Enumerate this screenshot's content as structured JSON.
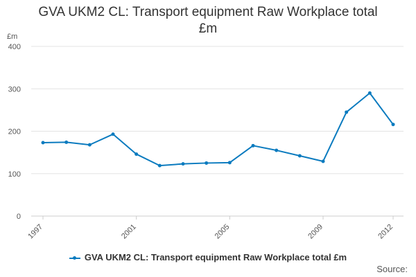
{
  "chart_data": {
    "type": "line",
    "title_lines": [
      "GVA UKM2 CL: Transport equipment Raw Workplace total",
      "£m"
    ],
    "ylabel": "£m",
    "xlabel": "",
    "ylim": [
      0,
      400
    ],
    "yticks": [
      0,
      100,
      200,
      300,
      400
    ],
    "xlim": [
      1997,
      2012
    ],
    "xticks": [
      1997,
      2001,
      2005,
      2009,
      2012
    ],
    "grid": true,
    "legend_position": "bottom",
    "series": [
      {
        "name": "GVA UKM2 CL: Transport equipment Raw Workplace total £m",
        "color": "#0b7bbf",
        "x": [
          1997,
          1998,
          1999,
          2000,
          2001,
          2002,
          2003,
          2004,
          2005,
          2006,
          2007,
          2008,
          2009,
          2010,
          2011,
          2012
        ],
        "values": [
          173,
          174,
          168,
          193,
          146,
          119,
          123,
          125,
          126,
          166,
          155,
          142,
          129,
          245,
          290,
          216
        ]
      }
    ],
    "source_label": "Source:"
  }
}
